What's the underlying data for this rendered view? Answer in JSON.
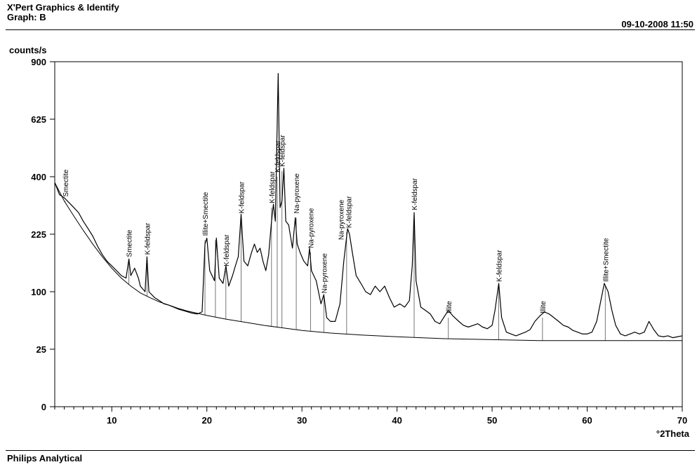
{
  "header": {
    "app_title": "X'Pert Graphics & Identify",
    "graph_label": "Graph: B",
    "datetime": "09-10-2008 11:50"
  },
  "footer": {
    "company": "Philips Analytical"
  },
  "chart_data": {
    "type": "line",
    "xlabel": "°2Theta",
    "ylabel": "counts/s",
    "xlim": [
      4,
      70
    ],
    "ylim": [
      0,
      900
    ],
    "y_scale": "sqrt",
    "grid": false,
    "x_ticks": [
      10,
      20,
      30,
      40,
      50,
      60,
      70
    ],
    "y_ticks": [
      0,
      25,
      100,
      225,
      400,
      625,
      900
    ],
    "pattern": [
      [
        4.0,
        380
      ],
      [
        4.5,
        340
      ],
      [
        5.0,
        330
      ],
      [
        5.5,
        315
      ],
      [
        6.0,
        300
      ],
      [
        6.5,
        285
      ],
      [
        7.0,
        260
      ],
      [
        7.5,
        240
      ],
      [
        8.0,
        220
      ],
      [
        8.5,
        195
      ],
      [
        9.0,
        175
      ],
      [
        9.5,
        160
      ],
      [
        10.0,
        150
      ],
      [
        10.5,
        140
      ],
      [
        11.0,
        130
      ],
      [
        11.5,
        125
      ],
      [
        11.8,
        165
      ],
      [
        12.0,
        130
      ],
      [
        12.4,
        145
      ],
      [
        12.8,
        125
      ],
      [
        13.0,
        110
      ],
      [
        13.5,
        100
      ],
      [
        13.7,
        170
      ],
      [
        13.9,
        100
      ],
      [
        14.5,
        90
      ],
      [
        15.0,
        85
      ],
      [
        15.5,
        80
      ],
      [
        16.0,
        78
      ],
      [
        16.5,
        75
      ],
      [
        17.0,
        72
      ],
      [
        17.5,
        70
      ],
      [
        18.0,
        68
      ],
      [
        18.5,
        66
      ],
      [
        19.0,
        65
      ],
      [
        19.5,
        68
      ],
      [
        19.8,
        200
      ],
      [
        20.0,
        215
      ],
      [
        20.3,
        140
      ],
      [
        20.8,
        120
      ],
      [
        21.0,
        215
      ],
      [
        21.3,
        125
      ],
      [
        21.7,
        115
      ],
      [
        22.0,
        150
      ],
      [
        22.3,
        110
      ],
      [
        22.7,
        130
      ],
      [
        23.0,
        150
      ],
      [
        23.3,
        170
      ],
      [
        23.6,
        280
      ],
      [
        23.9,
        160
      ],
      [
        24.3,
        150
      ],
      [
        24.7,
        180
      ],
      [
        25.0,
        200
      ],
      [
        25.3,
        180
      ],
      [
        25.6,
        190
      ],
      [
        25.9,
        160
      ],
      [
        26.2,
        140
      ],
      [
        26.5,
        175
      ],
      [
        26.8,
        260
      ],
      [
        27.0,
        310
      ],
      [
        27.2,
        260
      ],
      [
        27.5,
        840
      ],
      [
        27.7,
        300
      ],
      [
        27.9,
        320
      ],
      [
        28.1,
        430
      ],
      [
        28.3,
        260
      ],
      [
        28.6,
        250
      ],
      [
        29.0,
        190
      ],
      [
        29.3,
        270
      ],
      [
        29.5,
        200
      ],
      [
        29.8,
        180
      ],
      [
        30.2,
        160
      ],
      [
        30.6,
        150
      ],
      [
        30.8,
        190
      ],
      [
        31.0,
        140
      ],
      [
        31.5,
        120
      ],
      [
        32.0,
        80
      ],
      [
        32.3,
        95
      ],
      [
        32.6,
        60
      ],
      [
        33.0,
        55
      ],
      [
        33.5,
        55
      ],
      [
        34.0,
        80
      ],
      [
        34.4,
        160
      ],
      [
        34.8,
        240
      ],
      [
        35.0,
        225
      ],
      [
        35.3,
        180
      ],
      [
        35.7,
        130
      ],
      [
        36.2,
        115
      ],
      [
        36.7,
        100
      ],
      [
        37.2,
        95
      ],
      [
        37.7,
        110
      ],
      [
        38.2,
        100
      ],
      [
        38.7,
        110
      ],
      [
        39.2,
        90
      ],
      [
        39.7,
        75
      ],
      [
        40.3,
        80
      ],
      [
        40.8,
        75
      ],
      [
        41.3,
        85
      ],
      [
        41.6,
        150
      ],
      [
        41.8,
        285
      ],
      [
        42.0,
        120
      ],
      [
        42.5,
        75
      ],
      [
        43.0,
        70
      ],
      [
        43.5,
        65
      ],
      [
        44.0,
        55
      ],
      [
        44.5,
        52
      ],
      [
        45.0,
        62
      ],
      [
        45.4,
        70
      ],
      [
        45.9,
        62
      ],
      [
        46.5,
        55
      ],
      [
        47.0,
        50
      ],
      [
        47.5,
        48
      ],
      [
        48.0,
        50
      ],
      [
        48.5,
        52
      ],
      [
        49.0,
        48
      ],
      [
        49.5,
        46
      ],
      [
        50.0,
        50
      ],
      [
        50.3,
        70
      ],
      [
        50.7,
        115
      ],
      [
        51.0,
        60
      ],
      [
        51.5,
        42
      ],
      [
        52.0,
        40
      ],
      [
        52.5,
        38
      ],
      [
        53.0,
        40
      ],
      [
        53.5,
        42
      ],
      [
        54.0,
        45
      ],
      [
        54.5,
        55
      ],
      [
        55.0,
        62
      ],
      [
        55.5,
        68
      ],
      [
        56.0,
        65
      ],
      [
        56.5,
        60
      ],
      [
        57.0,
        55
      ],
      [
        57.5,
        50
      ],
      [
        58.0,
        48
      ],
      [
        58.5,
        44
      ],
      [
        59.0,
        42
      ],
      [
        59.5,
        40
      ],
      [
        60.0,
        40
      ],
      [
        60.5,
        42
      ],
      [
        61.0,
        55
      ],
      [
        61.5,
        90
      ],
      [
        61.8,
        115
      ],
      [
        62.2,
        100
      ],
      [
        62.6,
        70
      ],
      [
        63.0,
        50
      ],
      [
        63.5,
        40
      ],
      [
        64.0,
        38
      ],
      [
        64.5,
        40
      ],
      [
        65.0,
        42
      ],
      [
        65.5,
        40
      ],
      [
        66.0,
        42
      ],
      [
        66.5,
        55
      ],
      [
        67.0,
        45
      ],
      [
        67.5,
        38
      ],
      [
        68.0,
        37
      ],
      [
        68.5,
        38
      ],
      [
        69.0,
        36
      ],
      [
        69.5,
        37
      ],
      [
        70.0,
        38
      ]
    ],
    "background": [
      [
        4,
        380
      ],
      [
        5,
        320
      ],
      [
        6,
        275
      ],
      [
        7,
        235
      ],
      [
        8,
        200
      ],
      [
        9,
        170
      ],
      [
        10,
        145
      ],
      [
        11,
        125
      ],
      [
        12,
        110
      ],
      [
        13,
        98
      ],
      [
        14,
        90
      ],
      [
        15,
        83
      ],
      [
        16,
        78
      ],
      [
        17,
        73
      ],
      [
        18,
        69
      ],
      [
        19,
        66
      ],
      [
        20,
        63
      ],
      [
        22,
        58
      ],
      [
        24,
        54
      ],
      [
        26,
        50
      ],
      [
        28,
        47
      ],
      [
        30,
        44
      ],
      [
        33,
        41
      ],
      [
        36,
        39
      ],
      [
        40,
        37
      ],
      [
        45,
        35
      ],
      [
        50,
        34
      ],
      [
        55,
        33
      ],
      [
        60,
        33
      ],
      [
        65,
        33
      ],
      [
        70,
        33
      ]
    ],
    "reference_lines": [
      [
        5.1,
        320
      ],
      [
        11.8,
        160
      ],
      [
        13.7,
        165
      ],
      [
        19.8,
        210
      ],
      [
        20.9,
        210
      ],
      [
        22.0,
        140
      ],
      [
        23.6,
        270
      ],
      [
        26.8,
        300
      ],
      [
        27.4,
        400
      ],
      [
        27.9,
        420
      ],
      [
        29.4,
        270
      ],
      [
        30.9,
        180
      ],
      [
        32.3,
        90
      ],
      [
        34.7,
        230
      ],
      [
        41.8,
        280
      ],
      [
        45.4,
        60
      ],
      [
        50.7,
        110
      ],
      [
        55.3,
        60
      ],
      [
        61.9,
        110
      ]
    ],
    "annotations": [
      {
        "label": "Smectite",
        "x": 5.1
      },
      {
        "label": "Smectite",
        "x": 11.8
      },
      {
        "label": "K-feldspar",
        "x": 13.7
      },
      {
        "label": "Illite+Smectite",
        "x": 19.8
      },
      {
        "label": "K-feldspar",
        "x": 22.0
      },
      {
        "label": "K-feldspar",
        "x": 23.6
      },
      {
        "label": "K-feldspar",
        "x": 26.8
      },
      {
        "label": "K-feldspar",
        "x": 27.4
      },
      {
        "label": "K-feldspar",
        "x": 27.9
      },
      {
        "label": "Na-pyroxene",
        "x": 29.4
      },
      {
        "label": "Na-pyroxene",
        "x": 30.9
      },
      {
        "label": "Na-pyroxene",
        "x": 32.3
      },
      {
        "label": "Na-pyroxene",
        "x": 34.1
      },
      {
        "label": "K-feldspar",
        "x": 34.9
      },
      {
        "label": "K-feldspar",
        "x": 41.8
      },
      {
        "label": "Illite",
        "x": 45.4
      },
      {
        "label": "K-feldspar",
        "x": 50.7
      },
      {
        "label": "Illite",
        "x": 55.3
      },
      {
        "label": "Illite+Smectite",
        "x": 61.9
      }
    ]
  }
}
